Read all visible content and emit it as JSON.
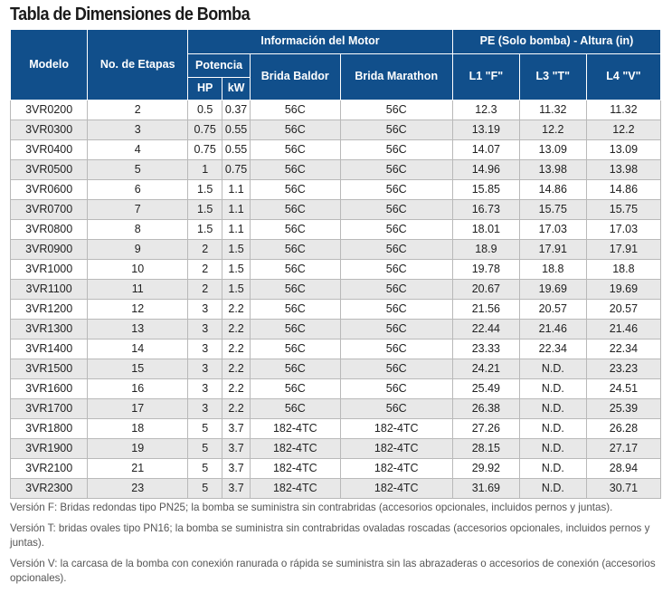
{
  "title": "Tabla de Dimensiones de Bomba",
  "headers": {
    "modelo": "Modelo",
    "etapas": "No. de Etapas",
    "motor_group": "Información del Motor",
    "pe_group": "PE (Solo bomba) - Altura (in)",
    "potencia": "Potencia",
    "hp": "HP",
    "kw": "kW",
    "baldor": "Brida Baldor",
    "marathon": "Brida Marathon",
    "l1": "L1 \"F\"",
    "l3": "L3 \"T\"",
    "l4": "L4 \"V\""
  },
  "rows": [
    [
      "3VR0200",
      "2",
      "0.5",
      "0.37",
      "56C",
      "56C",
      "12.3",
      "11.32",
      "11.32"
    ],
    [
      "3VR0300",
      "3",
      "0.75",
      "0.55",
      "56C",
      "56C",
      "13.19",
      "12.2",
      "12.2"
    ],
    [
      "3VR0400",
      "4",
      "0.75",
      "0.55",
      "56C",
      "56C",
      "14.07",
      "13.09",
      "13.09"
    ],
    [
      "3VR0500",
      "5",
      "1",
      "0.75",
      "56C",
      "56C",
      "14.96",
      "13.98",
      "13.98"
    ],
    [
      "3VR0600",
      "6",
      "1.5",
      "1.1",
      "56C",
      "56C",
      "15.85",
      "14.86",
      "14.86"
    ],
    [
      "3VR0700",
      "7",
      "1.5",
      "1.1",
      "56C",
      "56C",
      "16.73",
      "15.75",
      "15.75"
    ],
    [
      "3VR0800",
      "8",
      "1.5",
      "1.1",
      "56C",
      "56C",
      "18.01",
      "17.03",
      "17.03"
    ],
    [
      "3VR0900",
      "9",
      "2",
      "1.5",
      "56C",
      "56C",
      "18.9",
      "17.91",
      "17.91"
    ],
    [
      "3VR1000",
      "10",
      "2",
      "1.5",
      "56C",
      "56C",
      "19.78",
      "18.8",
      "18.8"
    ],
    [
      "3VR1100",
      "11",
      "2",
      "1.5",
      "56C",
      "56C",
      "20.67",
      "19.69",
      "19.69"
    ],
    [
      "3VR1200",
      "12",
      "3",
      "2.2",
      "56C",
      "56C",
      "21.56",
      "20.57",
      "20.57"
    ],
    [
      "3VR1300",
      "13",
      "3",
      "2.2",
      "56C",
      "56C",
      "22.44",
      "21.46",
      "21.46"
    ],
    [
      "3VR1400",
      "14",
      "3",
      "2.2",
      "56C",
      "56C",
      "23.33",
      "22.34",
      "22.34"
    ],
    [
      "3VR1500",
      "15",
      "3",
      "2.2",
      "56C",
      "56C",
      "24.21",
      "N.D.",
      "23.23"
    ],
    [
      "3VR1600",
      "16",
      "3",
      "2.2",
      "56C",
      "56C",
      "25.49",
      "N.D.",
      "24.51"
    ],
    [
      "3VR1700",
      "17",
      "3",
      "2.2",
      "56C",
      "56C",
      "26.38",
      "N.D.",
      "25.39"
    ],
    [
      "3VR1800",
      "18",
      "5",
      "3.7",
      "182-4TC",
      "182-4TC",
      "27.26",
      "N.D.",
      "26.28"
    ],
    [
      "3VR1900",
      "19",
      "5",
      "3.7",
      "182-4TC",
      "182-4TC",
      "28.15",
      "N.D.",
      "27.17"
    ],
    [
      "3VR2100",
      "21",
      "5",
      "3.7",
      "182-4TC",
      "182-4TC",
      "29.92",
      "N.D.",
      "28.94"
    ],
    [
      "3VR2300",
      "23",
      "5",
      "3.7",
      "182-4TC",
      "182-4TC",
      "31.69",
      "N.D.",
      "30.71"
    ]
  ],
  "notes": [
    "Versión F: Bridas redondas tipo PN25; la bomba se suministra sin contrabridas (accesorios opcionales, incluidos pernos y juntas).",
    "Versión T: bridas ovales tipo PN16; la bomba se suministra sin contrabridas ovaladas roscadas (accesorios opcionales, incluidos pernos y juntas).",
    "Versión V: la carcasa de la bomba con conexión ranurada o rápida se suministra sin las abrazaderas o accesorios de conexión (accesorios opcionales)."
  ]
}
